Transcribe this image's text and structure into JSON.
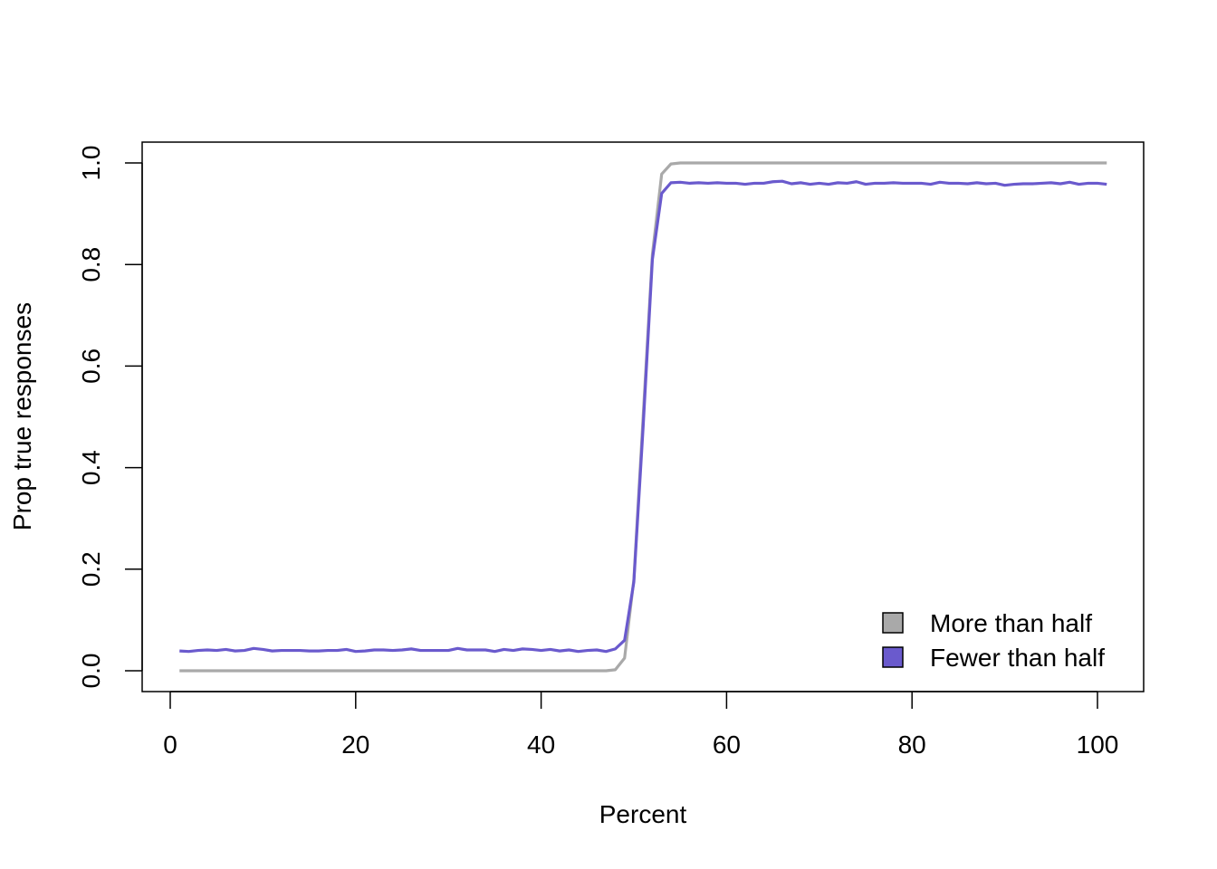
{
  "chart_data": {
    "type": "line",
    "title": "",
    "xlabel": "Percent",
    "ylabel": "Prop true responses",
    "xlim": [
      1,
      101
    ],
    "ylim": [
      0,
      1
    ],
    "x_ticks": [
      0,
      20,
      40,
      60,
      80,
      100
    ],
    "x_tick_labels": [
      "0",
      "20",
      "40",
      "60",
      "80",
      "100"
    ],
    "y_ticks": [
      0,
      0.2,
      0.4,
      0.6,
      0.8,
      1
    ],
    "y_tick_labels": [
      "0.0",
      "0.2",
      "0.4",
      "0.6",
      "0.8",
      "1.0"
    ],
    "grid": false,
    "legend_position": "bottom-right",
    "legend": [
      "More than half",
      "Fewer than half"
    ],
    "x": [
      1,
      2,
      3,
      4,
      5,
      6,
      7,
      8,
      9,
      10,
      11,
      12,
      13,
      14,
      15,
      16,
      17,
      18,
      19,
      20,
      21,
      22,
      23,
      24,
      25,
      26,
      27,
      28,
      29,
      30,
      31,
      32,
      33,
      34,
      35,
      36,
      37,
      38,
      39,
      40,
      41,
      42,
      43,
      44,
      45,
      46,
      47,
      48,
      49,
      50,
      51,
      52,
      53,
      54,
      55,
      56,
      57,
      58,
      59,
      60,
      61,
      62,
      63,
      64,
      65,
      66,
      67,
      68,
      69,
      70,
      71,
      72,
      73,
      74,
      75,
      76,
      77,
      78,
      79,
      80,
      81,
      82,
      83,
      84,
      85,
      86,
      87,
      88,
      89,
      90,
      91,
      92,
      93,
      94,
      95,
      96,
      97,
      98,
      99,
      100,
      101
    ],
    "series": [
      {
        "name": "More than half",
        "color": "#a9a9a9",
        "values": [
          0,
          0,
          0,
          0,
          0,
          0,
          0,
          0,
          0,
          0,
          0,
          0,
          0,
          0,
          0,
          0,
          0,
          0,
          0,
          0,
          0,
          0,
          0,
          0,
          0,
          0,
          0,
          0,
          0,
          0,
          0,
          0,
          0,
          0,
          0,
          0,
          0,
          0,
          0,
          0,
          0,
          0,
          0,
          0,
          0,
          0,
          0,
          0.002,
          0.025,
          0.18,
          0.5,
          0.82,
          0.978,
          0.998,
          1,
          1,
          1,
          1,
          1,
          1,
          1,
          1,
          1,
          1,
          1,
          1,
          1,
          1,
          1,
          1,
          1,
          1,
          1,
          1,
          1,
          1,
          1,
          1,
          1,
          1,
          1,
          1,
          1,
          1,
          1,
          1,
          1,
          1,
          1,
          1,
          1,
          1,
          1,
          1,
          1,
          1,
          1,
          1,
          1,
          1,
          1
        ]
      },
      {
        "name": "Fewer than half",
        "color": "#6a5acd",
        "values": [
          0.039,
          0.038,
          0.04,
          0.041,
          0.04,
          0.042,
          0.039,
          0.04,
          0.044,
          0.042,
          0.039,
          0.04,
          0.04,
          0.04,
          0.039,
          0.039,
          0.04,
          0.04,
          0.042,
          0.038,
          0.039,
          0.041,
          0.041,
          0.04,
          0.041,
          0.043,
          0.04,
          0.04,
          0.04,
          0.04,
          0.044,
          0.041,
          0.041,
          0.041,
          0.038,
          0.042,
          0.04,
          0.043,
          0.042,
          0.04,
          0.042,
          0.039,
          0.041,
          0.038,
          0.04,
          0.041,
          0.038,
          0.043,
          0.06,
          0.175,
          0.48,
          0.81,
          0.94,
          0.961,
          0.962,
          0.96,
          0.961,
          0.96,
          0.961,
          0.96,
          0.96,
          0.958,
          0.96,
          0.96,
          0.963,
          0.964,
          0.959,
          0.961,
          0.958,
          0.96,
          0.958,
          0.961,
          0.96,
          0.963,
          0.958,
          0.96,
          0.96,
          0.961,
          0.96,
          0.96,
          0.96,
          0.958,
          0.962,
          0.96,
          0.96,
          0.959,
          0.961,
          0.959,
          0.96,
          0.956,
          0.958,
          0.959,
          0.959,
          0.96,
          0.961,
          0.959,
          0.962,
          0.958,
          0.96,
          0.96,
          0.958
        ]
      }
    ]
  }
}
